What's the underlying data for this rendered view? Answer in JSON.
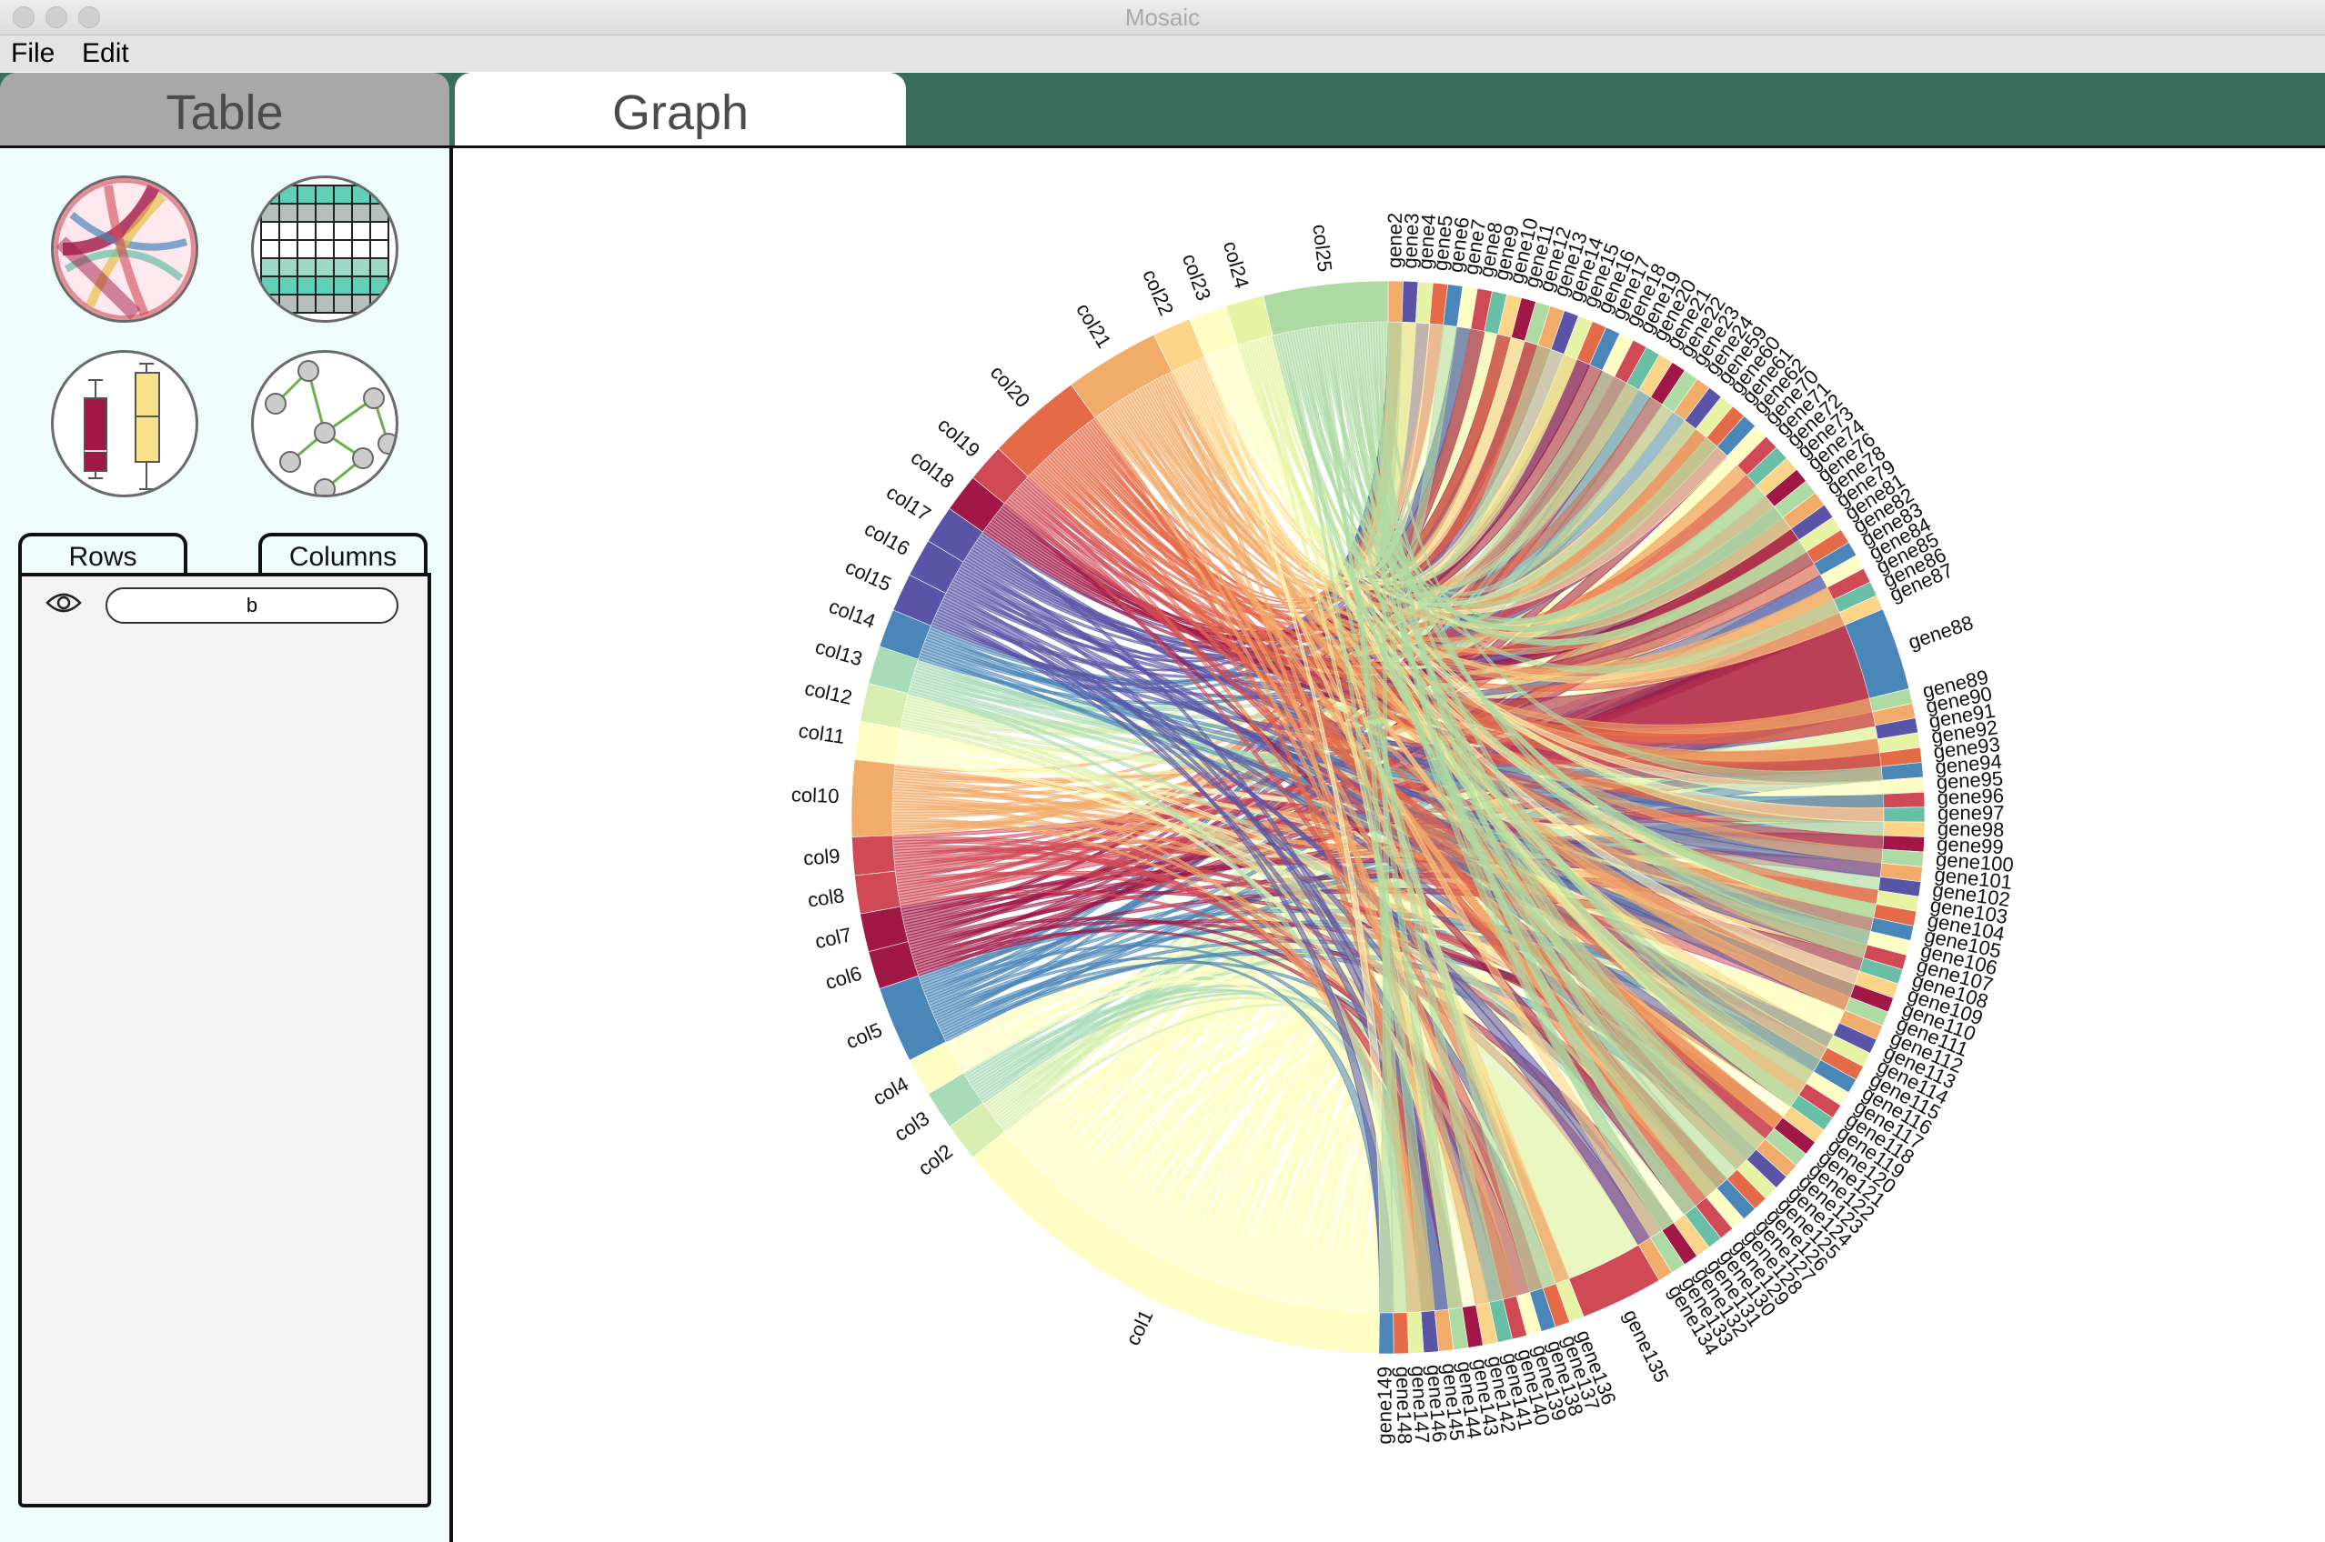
{
  "window": {
    "title": "Mosaic"
  },
  "menu": {
    "items": [
      "File",
      "Edit"
    ]
  },
  "tabs": {
    "table": "Table",
    "graph": "Graph"
  },
  "sidebar": {
    "icons": [
      "chord-diagram-icon",
      "heatmap-icon",
      "boxplot-icon",
      "network-graph-icon"
    ],
    "rows_tab": "Rows",
    "columns_tab": "Columns",
    "filter_value": "b"
  },
  "chart_data": {
    "type": "chord",
    "groups": [
      {
        "name": "col1",
        "color": "#fdfdc4"
      },
      {
        "name": "col2",
        "color": "#d8eeb0"
      },
      {
        "name": "col3",
        "color": "#a8dbb8"
      },
      {
        "name": "col4",
        "color": "#fdfdc4"
      },
      {
        "name": "col5",
        "color": "#4a86b8"
      },
      {
        "name": "col6",
        "color": "#a11846"
      },
      {
        "name": "col7",
        "color": "#a11846"
      },
      {
        "name": "col8",
        "color": "#d04a56"
      },
      {
        "name": "col9",
        "color": "#d04a56"
      },
      {
        "name": "col10",
        "color": "#f2ac6a"
      },
      {
        "name": "col11",
        "color": "#fdfdc4"
      },
      {
        "name": "col12",
        "color": "#d8eeb0"
      },
      {
        "name": "col13",
        "color": "#a8dbb8"
      },
      {
        "name": "col14",
        "color": "#4a86b8"
      },
      {
        "name": "col15",
        "color": "#5a54a6"
      },
      {
        "name": "col16",
        "color": "#5a54a6"
      },
      {
        "name": "col17",
        "color": "#5a54a6"
      },
      {
        "name": "col18",
        "color": "#a11846"
      },
      {
        "name": "col19",
        "color": "#d04a56"
      },
      {
        "name": "col20",
        "color": "#e56b48"
      },
      {
        "name": "col21",
        "color": "#f2ac6a"
      },
      {
        "name": "col22",
        "color": "#fcd488"
      },
      {
        "name": "col23",
        "color": "#fdfdc4"
      },
      {
        "name": "col24",
        "color": "#e6f3a4"
      },
      {
        "name": "col25",
        "color": "#aedba4"
      },
      {
        "name": "gene2"
      },
      {
        "name": "gene3"
      },
      {
        "name": "gene4"
      },
      {
        "name": "gene5"
      },
      {
        "name": "gene6"
      },
      {
        "name": "gene7"
      },
      {
        "name": "gene8"
      },
      {
        "name": "gene9"
      },
      {
        "name": "gene10"
      },
      {
        "name": "gene11"
      },
      {
        "name": "gene12"
      },
      {
        "name": "gene13"
      },
      {
        "name": "gene14"
      },
      {
        "name": "gene15"
      },
      {
        "name": "gene16"
      },
      {
        "name": "gene17"
      },
      {
        "name": "gene18"
      },
      {
        "name": "gene19"
      },
      {
        "name": "gene20"
      },
      {
        "name": "gene21"
      },
      {
        "name": "gene22"
      },
      {
        "name": "gene23"
      },
      {
        "name": "gene24"
      },
      {
        "name": "gene59"
      },
      {
        "name": "gene60"
      },
      {
        "name": "gene61"
      },
      {
        "name": "gene62"
      },
      {
        "name": "gene70"
      },
      {
        "name": "gene71"
      },
      {
        "name": "gene72"
      },
      {
        "name": "gene73"
      },
      {
        "name": "gene74"
      },
      {
        "name": "gene76"
      },
      {
        "name": "gene78"
      },
      {
        "name": "gene79"
      },
      {
        "name": "gene81"
      },
      {
        "name": "gene82"
      },
      {
        "name": "gene83"
      },
      {
        "name": "gene84"
      },
      {
        "name": "gene85"
      },
      {
        "name": "gene86"
      },
      {
        "name": "gene87"
      },
      {
        "name": "gene88",
        "color": "#4a86b8"
      },
      {
        "name": "gene89"
      },
      {
        "name": "gene90"
      },
      {
        "name": "gene91"
      },
      {
        "name": "gene92"
      },
      {
        "name": "gene93"
      },
      {
        "name": "gene94"
      },
      {
        "name": "gene95"
      },
      {
        "name": "gene96"
      },
      {
        "name": "gene97"
      },
      {
        "name": "gene98"
      },
      {
        "name": "gene99"
      },
      {
        "name": "gene100"
      },
      {
        "name": "gene101"
      },
      {
        "name": "gene102"
      },
      {
        "name": "gene103"
      },
      {
        "name": "gene104"
      },
      {
        "name": "gene105"
      },
      {
        "name": "gene106"
      },
      {
        "name": "gene107"
      },
      {
        "name": "gene108"
      },
      {
        "name": "gene109"
      },
      {
        "name": "gene110"
      },
      {
        "name": "gene111"
      },
      {
        "name": "gene112"
      },
      {
        "name": "gene113"
      },
      {
        "name": "gene114"
      },
      {
        "name": "gene115"
      },
      {
        "name": "gene116"
      },
      {
        "name": "gene117"
      },
      {
        "name": "gene118"
      },
      {
        "name": "gene119"
      },
      {
        "name": "gene120"
      },
      {
        "name": "gene121"
      },
      {
        "name": "gene122"
      },
      {
        "name": "gene123"
      },
      {
        "name": "gene124"
      },
      {
        "name": "gene125"
      },
      {
        "name": "gene126"
      },
      {
        "name": "gene127"
      },
      {
        "name": "gene128"
      },
      {
        "name": "gene129"
      },
      {
        "name": "gene130"
      },
      {
        "name": "gene131"
      },
      {
        "name": "gene132"
      },
      {
        "name": "gene133"
      },
      {
        "name": "gene134"
      },
      {
        "name": "gene135",
        "color": "#d04a56"
      },
      {
        "name": "gene136"
      },
      {
        "name": "gene137"
      },
      {
        "name": "gene138"
      },
      {
        "name": "gene139"
      },
      {
        "name": "gene140"
      },
      {
        "name": "gene141"
      },
      {
        "name": "gene142"
      },
      {
        "name": "gene143"
      },
      {
        "name": "gene144"
      },
      {
        "name": "gene145"
      },
      {
        "name": "gene146"
      },
      {
        "name": "gene147"
      },
      {
        "name": "gene148"
      },
      {
        "name": "gene149"
      }
    ],
    "palette": [
      "#a11846",
      "#d04a56",
      "#e56b48",
      "#f2ac6a",
      "#fcd488",
      "#fdfdc4",
      "#e6f3a4",
      "#aedba4",
      "#68bfa6",
      "#4a86b8",
      "#5a54a6"
    ],
    "title": ""
  }
}
